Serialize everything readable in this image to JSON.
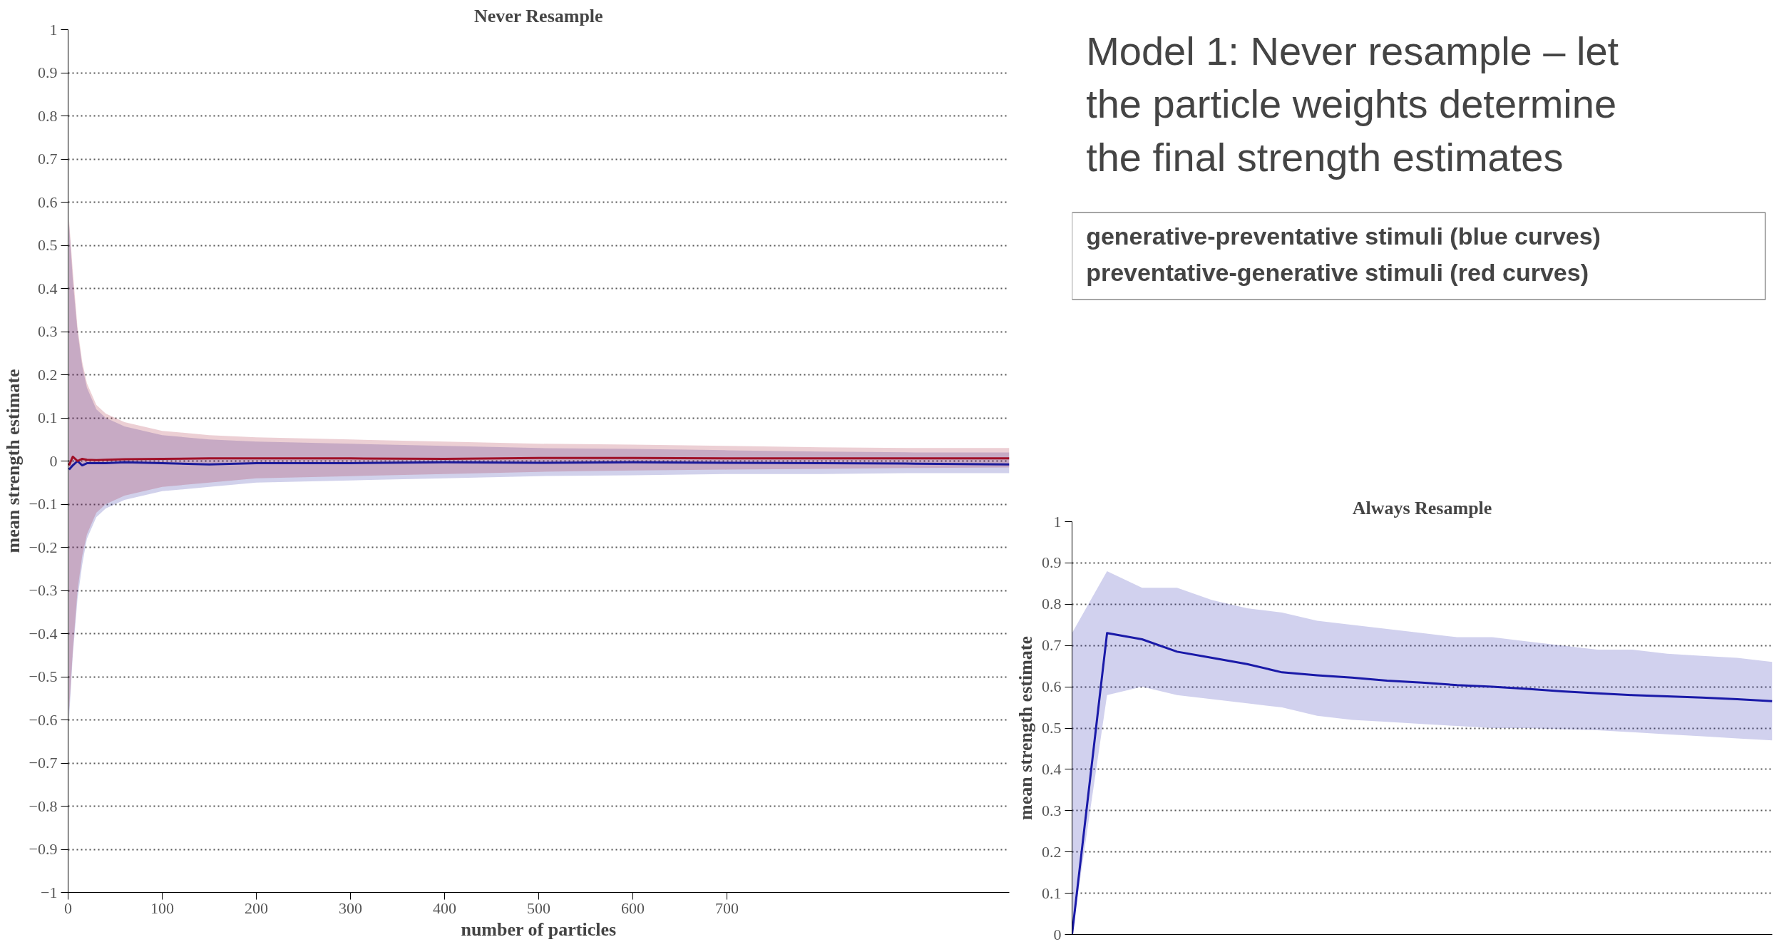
{
  "chart_data": [
    {
      "type": "line",
      "title": "Never Resample",
      "xlabel": "number of particles",
      "ylabel": "mean strength estimate",
      "xlim": [
        0,
        1000
      ],
      "xticks": [
        0,
        100,
        200,
        300,
        400,
        500,
        600,
        700
      ],
      "ylim": [
        -1,
        1
      ],
      "yticks": [
        -1,
        -0.9,
        -0.8,
        -0.7,
        -0.6,
        -0.5,
        -0.4,
        -0.3,
        -0.2,
        -0.1,
        0,
        0.1,
        0.2,
        0.3,
        0.4,
        0.5,
        0.6,
        0.7,
        0.8,
        0.9,
        1
      ],
      "grid": "y",
      "line_style": "solid",
      "series": [
        {
          "color": "#1a1a9a",
          "x": [
            1,
            5,
            10,
            15,
            20,
            30,
            40,
            60,
            100,
            150,
            200,
            300,
            400,
            500,
            600,
            700,
            800,
            900,
            1000
          ],
          "values": [
            -0.02,
            -0.01,
            0.0,
            -0.01,
            -0.005,
            -0.005,
            -0.005,
            -0.003,
            -0.005,
            -0.008,
            -0.005,
            -0.005,
            -0.003,
            -0.004,
            -0.003,
            -0.004,
            -0.005,
            -0.006,
            -0.008
          ],
          "lower": [
            -0.6,
            -0.45,
            -0.32,
            -0.24,
            -0.18,
            -0.13,
            -0.11,
            -0.09,
            -0.07,
            -0.06,
            -0.05,
            -0.045,
            -0.04,
            -0.035,
            -0.033,
            -0.03,
            -0.03,
            -0.028,
            -0.028
          ],
          "upper": [
            0.55,
            0.42,
            0.3,
            0.22,
            0.17,
            0.12,
            0.1,
            0.08,
            0.06,
            0.05,
            0.045,
            0.04,
            0.035,
            0.03,
            0.028,
            0.025,
            0.022,
            0.02,
            0.02
          ]
        },
        {
          "color": "#a01028",
          "x": [
            1,
            5,
            10,
            15,
            20,
            30,
            40,
            60,
            100,
            150,
            200,
            300,
            400,
            500,
            600,
            700,
            800,
            900,
            1000
          ],
          "values": [
            -0.01,
            0.01,
            0.0,
            0.005,
            0.003,
            0.002,
            0.003,
            0.004,
            0.005,
            0.006,
            0.006,
            0.006,
            0.005,
            0.007,
            0.007,
            0.006,
            0.006,
            0.006,
            0.006
          ],
          "lower": [
            -0.58,
            -0.44,
            -0.3,
            -0.22,
            -0.17,
            -0.12,
            -0.1,
            -0.08,
            -0.06,
            -0.05,
            -0.04,
            -0.035,
            -0.03,
            -0.025,
            -0.022,
            -0.02,
            -0.018,
            -0.016,
            -0.015
          ],
          "upper": [
            0.56,
            0.44,
            0.31,
            0.23,
            0.18,
            0.13,
            0.11,
            0.09,
            0.07,
            0.06,
            0.055,
            0.05,
            0.045,
            0.04,
            0.038,
            0.035,
            0.032,
            0.03,
            0.03
          ]
        }
      ]
    },
    {
      "type": "other",
      "title": "Model 1: Never resample – let the particle weights determine the final strength estimates",
      "annotations": [
        "generative-preventative stimuli  (blue curves)",
        "preventative-generative stimuli  (red curves)"
      ]
    },
    {
      "type": "line",
      "title": "Always Resample",
      "ylabel": "mean strength estimate",
      "categories": [
        null,
        null,
        null,
        null,
        null,
        null,
        null,
        null,
        null,
        null,
        null,
        null,
        null,
        null,
        null,
        null,
        null,
        null,
        null,
        null,
        null
      ],
      "ylim": [
        0,
        1
      ],
      "yticks": [
        0,
        0.1,
        0.2,
        0.3,
        0.4,
        0.5,
        0.6,
        0.7,
        0.8,
        0.9,
        1
      ],
      "grid": "y",
      "line_style": "solid",
      "series": [
        {
          "color": "#1a1aa8",
          "values": [
            0.0,
            0.73,
            0.715,
            0.685,
            0.67,
            0.655,
            0.635,
            0.628,
            0.622,
            0.615,
            0.61,
            0.604,
            0.6,
            0.595,
            0.589,
            0.584,
            0.58,
            0.577,
            0.574,
            0.57,
            0.565
          ],
          "lower": [
            0.0,
            0.58,
            0.6,
            0.58,
            0.57,
            0.56,
            0.55,
            0.53,
            0.52,
            0.515,
            0.51,
            0.505,
            0.5,
            0.5,
            0.497,
            0.495,
            0.49,
            0.485,
            0.48,
            0.475,
            0.47
          ],
          "upper": [
            0.73,
            0.88,
            0.84,
            0.84,
            0.81,
            0.79,
            0.78,
            0.76,
            0.75,
            0.74,
            0.73,
            0.72,
            0.72,
            0.71,
            0.7,
            0.69,
            0.69,
            0.68,
            0.675,
            0.67,
            0.66
          ]
        }
      ]
    }
  ]
}
